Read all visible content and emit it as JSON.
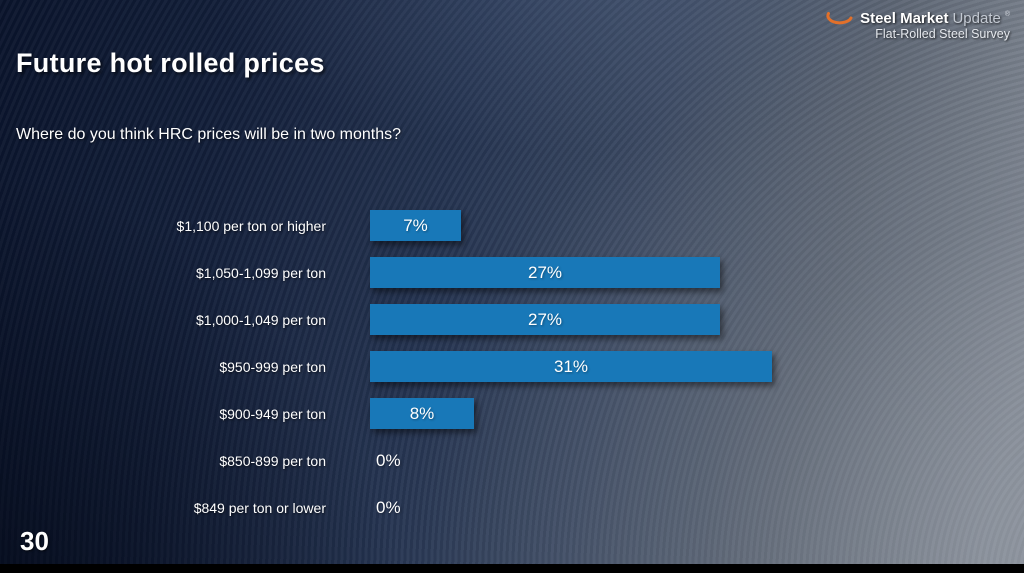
{
  "slide": {
    "title": "Future hot rolled prices",
    "question": "Where do you think HRC prices will be in two months?",
    "page_number": "30"
  },
  "logo": {
    "brand_bold": "Steel Market",
    "brand_light": "Update",
    "trademark": "®",
    "subtitle": "Flat-Rolled Steel Survey",
    "swoosh_color": "#e2702a"
  },
  "chart_data": {
    "type": "bar",
    "orientation": "horizontal",
    "title": "Future hot rolled prices",
    "xlabel": "",
    "ylabel": "",
    "xlim": [
      0,
      33
    ],
    "grid": false,
    "legend": "none",
    "bar_color": "#1878b8",
    "categories": [
      "$1,100 per ton or higher",
      "$1,050-1,099 per ton",
      "$1,000-1,049 per ton",
      "$950-999 per ton",
      "$900-949 per ton",
      "$850-899 per ton",
      "$849 per ton or lower"
    ],
    "values": [
      7,
      27,
      27,
      31,
      8,
      0,
      0
    ],
    "labels": [
      "7%",
      "27%",
      "27%",
      "31%",
      "8%",
      "0%",
      "0%"
    ]
  }
}
